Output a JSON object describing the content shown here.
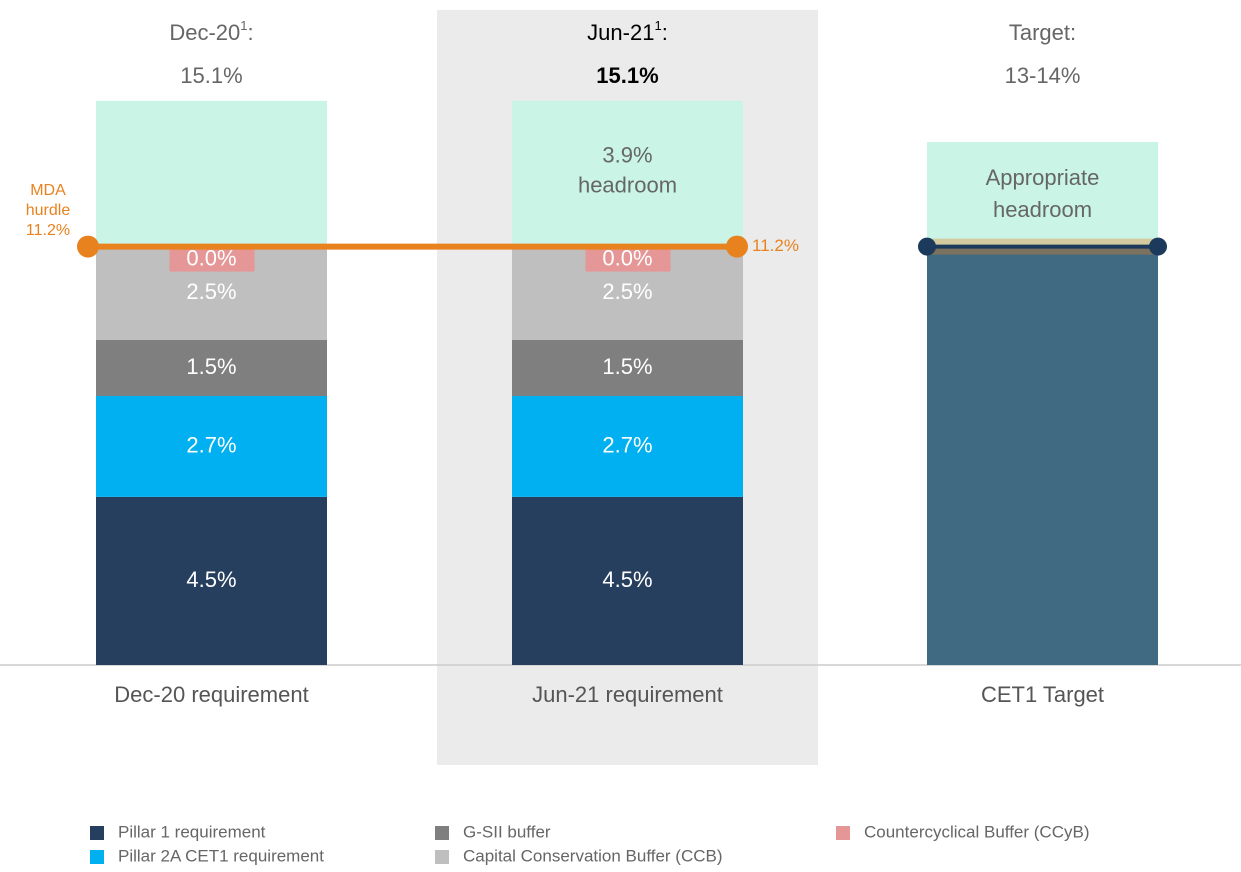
{
  "chart_data": {
    "type": "stacked_bar",
    "categories": [
      "Dec-20 requirement",
      "Jun-21 requirement",
      "CET1 Target"
    ],
    "headers": [
      {
        "title": "Dec-20",
        "note": "1",
        "sep": ":",
        "total": {
          "value": 15.1,
          "label": "15.1%"
        }
      },
      {
        "title": "Jun-21",
        "note": "1",
        "sep": ":",
        "total": {
          "value": 15.1,
          "label": "15.1%"
        }
      },
      {
        "title": "Target:",
        "total": {
          "label": "13-14%"
        }
      }
    ],
    "highlight": 1,
    "ylim": [
      0,
      17.8
    ],
    "series": [
      {
        "name": "Pillar 1 requirement",
        "color": "#263f5e",
        "values": [
          4.5,
          4.5,
          null
        ],
        "value_labels": [
          "4.5%",
          "4.5%",
          null
        ]
      },
      {
        "name": "Pillar 2A CET1 requirement",
        "color": "#00b0f0",
        "values": [
          2.7,
          2.7,
          null
        ],
        "value_labels": [
          "2.7%",
          "2.7%",
          null
        ]
      },
      {
        "name": "G-SII buffer",
        "color": "#7f7f7f",
        "values": [
          1.5,
          1.5,
          null
        ],
        "value_labels": [
          "1.5%",
          "1.5%",
          null
        ]
      },
      {
        "name": "Capital Conservation Buffer (CCB)",
        "color": "#bfbfbf",
        "values": [
          2.5,
          2.5,
          null
        ],
        "value_labels": [
          "2.5%",
          "2.5%",
          null
        ]
      },
      {
        "name": "Countercyclical Buffer (CCyB)",
        "color": "#e59696",
        "values": [
          0.0,
          0.0,
          null
        ],
        "value_labels": [
          "0.0%",
          "0.0%",
          null
        ]
      }
    ],
    "target_base": {
      "color": "#3f6a82",
      "value": 11.2
    },
    "headroom": {
      "color": "#c9f4e6",
      "values": [
        3.9,
        3.9,
        2.8
      ],
      "value_labels": [
        null,
        "3.9%",
        null
      ],
      "text": "headroom",
      "target_text": "Appropriate headroom"
    },
    "mda": {
      "value": 11.2,
      "title": "MDA hurdle",
      "label": "11.2%",
      "color": "#e8821e",
      "target_color": "#1c3a5c"
    }
  }
}
